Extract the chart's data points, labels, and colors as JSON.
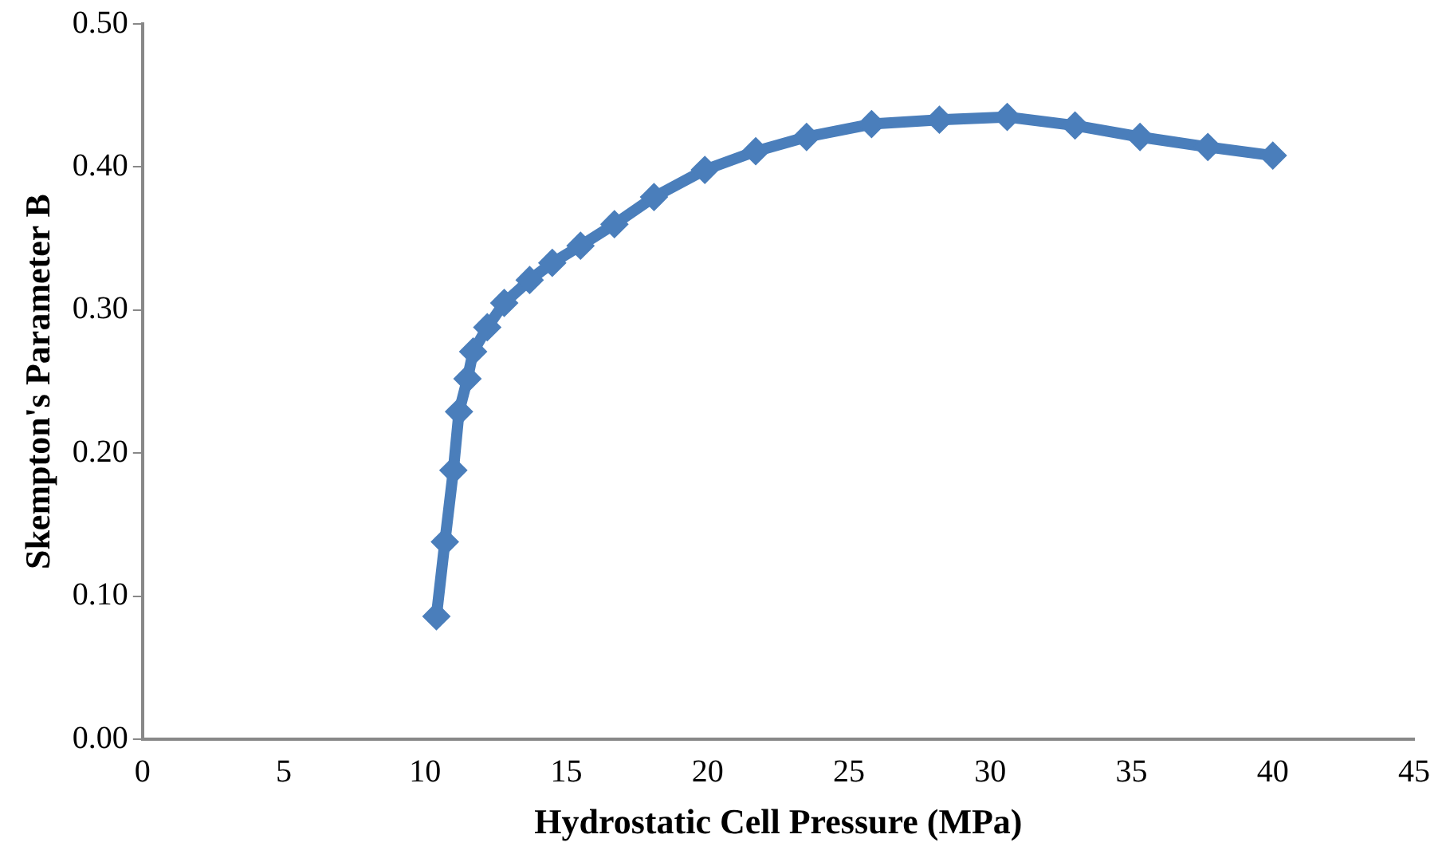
{
  "chart_data": {
    "type": "line",
    "xlabel": "Hydrostatic Cell Pressure (MPa)",
    "ylabel": "Skempton's Parameter B",
    "x": [
      10.4,
      10.7,
      11.0,
      11.2,
      11.5,
      11.7,
      12.2,
      12.8,
      13.7,
      14.5,
      15.5,
      16.7,
      18.1,
      19.9,
      21.7,
      23.5,
      25.8,
      28.2,
      30.6,
      33.0,
      35.3,
      37.7,
      40.0
    ],
    "series": [
      {
        "color": "#4a7ebb",
        "values": [
          0.086,
          0.138,
          0.188,
          0.229,
          0.252,
          0.271,
          0.288,
          0.305,
          0.321,
          0.333,
          0.345,
          0.36,
          0.379,
          0.398,
          0.411,
          0.421,
          0.43,
          0.433,
          0.435,
          0.429,
          0.421,
          0.414,
          0.408
        ]
      }
    ],
    "xlim": [
      0,
      45
    ],
    "xticks": [
      0,
      5,
      10,
      15,
      20,
      25,
      30,
      35,
      40,
      45
    ],
    "ylim": [
      0,
      0.5
    ],
    "yticks": [
      {
        "value": 0,
        "label": "0.00"
      },
      {
        "value": 0.1,
        "label": "0.10"
      },
      {
        "value": 0.2,
        "label": "0.20"
      },
      {
        "value": 0.3,
        "label": "0.30"
      },
      {
        "value": 0.4,
        "label": "0.40"
      },
      {
        "value": 0.5,
        "label": "0.50"
      }
    ],
    "grid": false,
    "legend": false,
    "marker": "diamond",
    "line_style": "solid"
  }
}
